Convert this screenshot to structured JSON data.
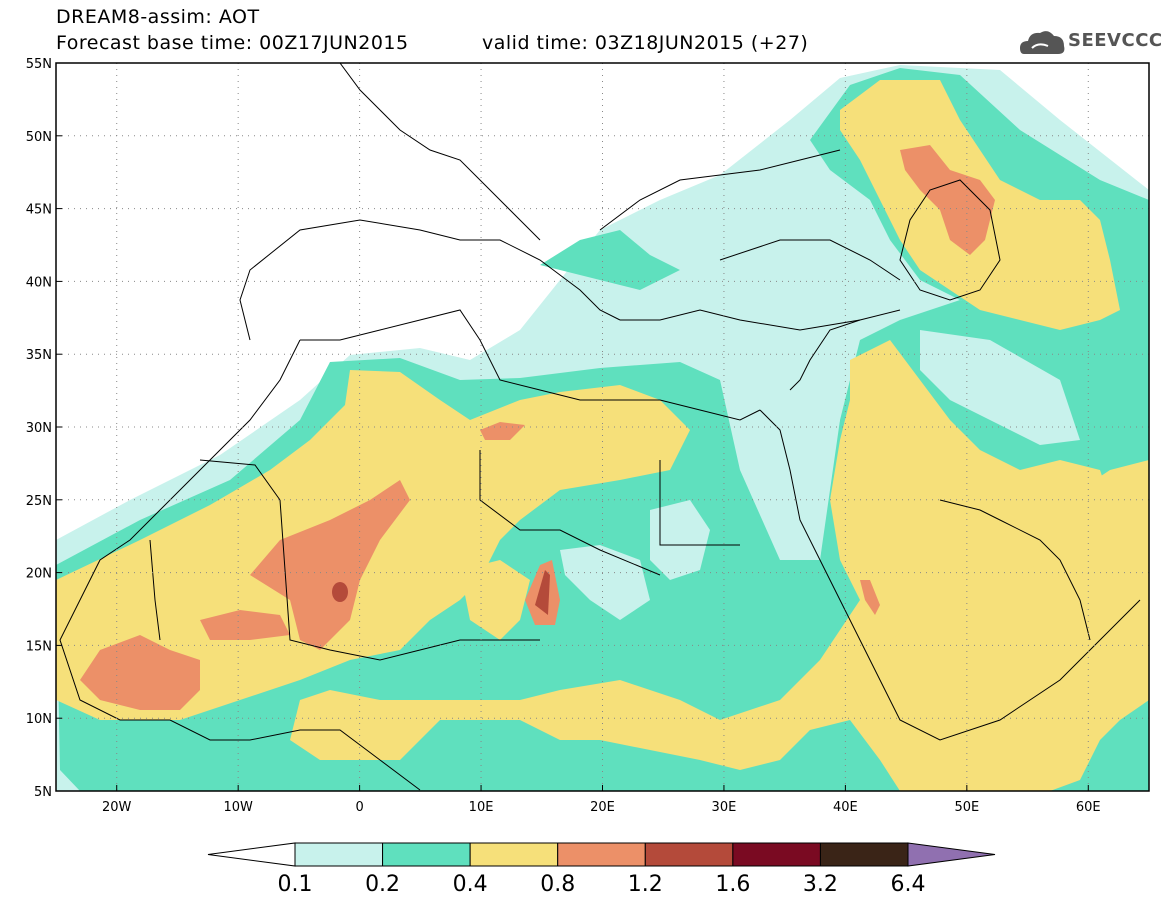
{
  "header": {
    "title_line1": "DREAM8-assim: AOT",
    "base_time": "Forecast base time: 00Z17JUN2015",
    "valid_time": "valid time: 03Z18JUN2015 (+27)",
    "logo_text": "SEEVCCC"
  },
  "map": {
    "lon_range": [
      -25,
      65
    ],
    "lat_range": [
      5,
      55
    ],
    "lat_labels": [
      "55N",
      "50N",
      "45N",
      "40N",
      "35N",
      "30N",
      "25N",
      "20N",
      "15N",
      "10N",
      "5N"
    ],
    "lon_labels": [
      "20W",
      "10W",
      "0",
      "10E",
      "20E",
      "30E",
      "40E",
      "50E",
      "60E"
    ],
    "grid": true
  },
  "colorbar": {
    "labels": [
      "0.1",
      "0.2",
      "0.4",
      "0.8",
      "1.2",
      "1.6",
      "3.2",
      "6.4"
    ],
    "colors": [
      "#ffffff",
      "#c8f2ec",
      "#5fe0be",
      "#f6e07a",
      "#ec9068",
      "#b44a3a",
      "#7a0a22",
      "#3a2417",
      "#9070b0"
    ]
  },
  "colors": {
    "light_cyan": "#c8f2ec",
    "teal": "#5fe0be",
    "yellow": "#f6e07a",
    "salmon": "#ec9068",
    "dark_red": "#b44a3a"
  }
}
